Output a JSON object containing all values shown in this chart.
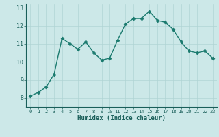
{
  "x": [
    0,
    1,
    2,
    3,
    4,
    5,
    6,
    7,
    8,
    9,
    10,
    11,
    12,
    13,
    14,
    15,
    16,
    17,
    18,
    19,
    20,
    21,
    22,
    23
  ],
  "y": [
    8.1,
    8.3,
    8.6,
    9.3,
    11.3,
    11.0,
    10.7,
    11.1,
    10.5,
    10.1,
    10.2,
    11.2,
    12.1,
    12.4,
    12.4,
    12.8,
    12.3,
    12.2,
    11.8,
    11.1,
    10.6,
    10.5,
    10.6,
    10.2
  ],
  "line_color": "#1a7a6e",
  "marker": "D",
  "markersize": 2.5,
  "linewidth": 1.0,
  "xlabel": "Humidex (Indice chaleur)",
  "xlim": [
    -0.5,
    23.5
  ],
  "ylim": [
    7.5,
    13.2
  ],
  "yticks": [
    8,
    9,
    10,
    11,
    12,
    13
  ],
  "xticks": [
    0,
    1,
    2,
    3,
    4,
    5,
    6,
    7,
    8,
    9,
    10,
    11,
    12,
    13,
    14,
    15,
    16,
    17,
    18,
    19,
    20,
    21,
    22,
    23
  ],
  "bg_color": "#cce8e8",
  "grid_color_major": "#b0d4d4",
  "grid_color_minor": "#e0f0f0",
  "tick_color": "#1a5f5a",
  "label_color": "#1a5f5a"
}
